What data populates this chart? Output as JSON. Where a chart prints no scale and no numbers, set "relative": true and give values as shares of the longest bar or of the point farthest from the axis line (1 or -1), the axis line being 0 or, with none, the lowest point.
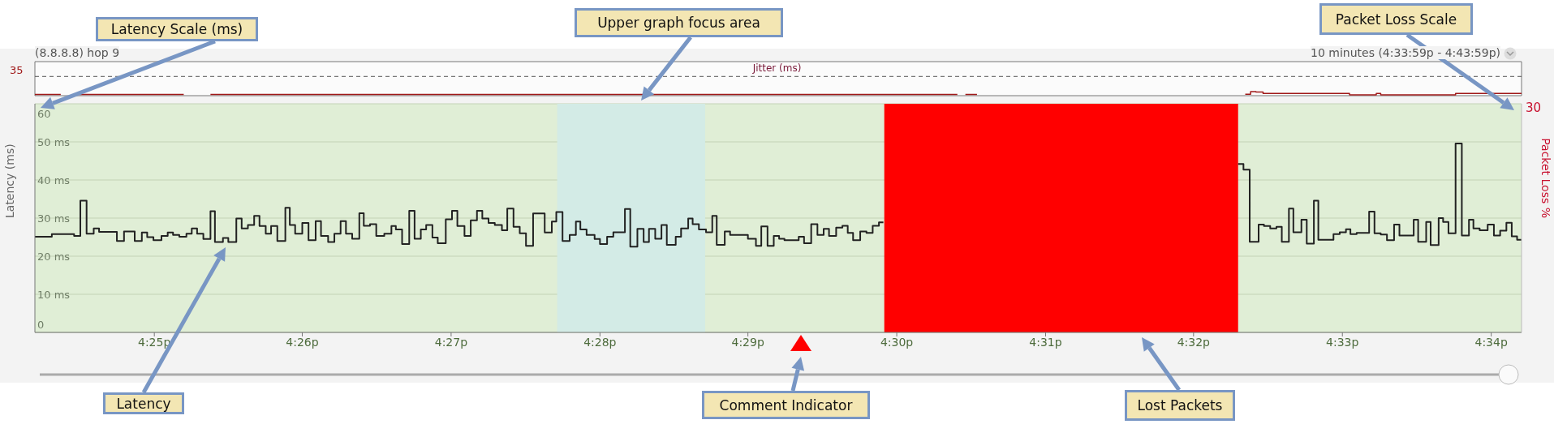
{
  "chart_data": [
    {
      "type": "step",
      "title": "Jitter (ms)",
      "color": "#a01818",
      "annotations": [
        "(8.8.8.8) hop 9",
        "10 minutes (4:33:59p - 4:43:59p)",
        "35"
      ],
      "x": [
        16.4033,
        16.4062,
        16.4063,
        16.4083,
        16.42,
        16.4201,
        16.423,
        16.5068,
        16.5069,
        16.5077,
        16.509,
        16.5091,
        16.5391,
        16.5397,
        16.5403,
        16.5411,
        16.5508,
        16.5538,
        16.5543,
        16.5627,
        16.5701
      ],
      "values": [
        0.32,
        0.32,
        null,
        0.32,
        0.32,
        null,
        0.32,
        0.32,
        null,
        0.32,
        0.32,
        null,
        0.36,
        1,
        0.91,
        0.54,
        0.18,
        0.54,
        0.18,
        0.54,
        0.54
      ],
      "relative": true,
      "xlim": [
        16.4033,
        16.5701
      ],
      "ref_lines": [
        {
          "axis": "y",
          "value": 4.73,
          "line_style": "dashed",
          "color": "#555555"
        }
      ]
    },
    {
      "type": "step",
      "ylabel": "Latency (ms)",
      "y2label": "Packet Loss %",
      "series": [
        {
          "color": "#222222",
          "x": [
            16.4033,
            16.4052,
            16.4077,
            16.4084,
            16.4091,
            16.4099,
            16.4105,
            16.4125,
            16.4133,
            16.4145,
            16.4153,
            16.4159,
            16.4166,
            16.4175,
            16.4182,
            16.4188,
            16.4195,
            16.4203,
            16.4209,
            16.4215,
            16.4222,
            16.423,
            16.4235,
            16.4244,
            16.425,
            16.4259,
            16.4265,
            16.4272,
            16.4279,
            16.4285,
            16.4292,
            16.4298,
            16.4305,
            16.4314,
            16.4319,
            16.4325,
            16.4333,
            16.434,
            16.4348,
            16.4354,
            16.4362,
            16.4369,
            16.4376,
            16.4382,
            16.4389,
            16.4397,
            16.4402,
            16.4409,
            16.4416,
            16.4425,
            16.4433,
            16.4438,
            16.4445,
            16.4453,
            16.4459,
            16.4466,
            16.4472,
            16.4479,
            16.4485,
            16.4494,
            16.4501,
            16.4507,
            16.4515,
            16.4522,
            16.4529,
            16.4535,
            16.4542,
            16.4549,
            16.4557,
            16.4563,
            16.457,
            16.4577,
            16.4584,
            16.4592,
            16.4605,
            16.4613,
            16.4618,
            16.4625,
            16.4633,
            16.464,
            16.4645,
            16.4652,
            16.4661,
            16.4667,
            16.4675,
            16.4682,
            16.4695,
            16.4701,
            16.4709,
            16.4716,
            16.4722,
            16.4729,
            16.4736,
            16.4742,
            16.4752,
            16.4758,
            16.4766,
            16.4771,
            16.4778,
            16.4786,
            16.4793,
            16.4798,
            16.4807,
            16.4813,
            16.4833,
            16.4842,
            16.4848,
            16.4855,
            16.4862,
            16.4868,
            16.4874,
            16.489,
            16.4896,
            16.4904,
            16.4911,
            16.4918,
            16.4924,
            16.4932,
            16.4939,
            16.4945,
            16.4951,
            16.4959,
            16.4966,
            16.4973,
            16.498,
            16.4985,
            16.4986,
            16.5383,
            16.5389,
            16.5396,
            16.5406,
            16.5412,
            16.5419,
            16.5426,
            16.5432,
            16.544,
            16.5445,
            16.5454,
            16.546,
            16.5468,
            16.5473,
            16.549,
            16.5497,
            16.5504,
            16.5509,
            16.5516,
            16.553,
            16.5536,
            16.5543,
            16.555,
            16.5558,
            16.5564,
            16.558,
            16.5585,
            16.5594,
            16.5599,
            16.5608,
            16.5613,
            16.5619,
            16.5627,
            16.5634,
            16.5642,
            16.5647,
            16.5654,
            16.5663,
            16.567,
            16.5677,
            16.5684,
            16.569,
            16.5696,
            16.5701
          ],
          "values": [
            25.1,
            25.8,
            25.3,
            34.6,
            25.9,
            27.3,
            26.4,
            24.0,
            26.5,
            24.0,
            26.2,
            25.0,
            24.2,
            25.3,
            26.2,
            25.6,
            25.1,
            25.9,
            27.3,
            25.9,
            24.5,
            31.8,
            23.7,
            24.8,
            23.7,
            29.9,
            27.3,
            28.2,
            30.6,
            27.9,
            25.9,
            27.9,
            24.0,
            32.7,
            28.2,
            25.9,
            28.7,
            24.2,
            29.2,
            25.3,
            23.7,
            25.9,
            29.2,
            25.9,
            24.6,
            31.3,
            28.0,
            28.4,
            25.3,
            25.9,
            27.9,
            27.0,
            23.2,
            31.9,
            24.6,
            27.0,
            28.2,
            24.9,
            23.4,
            29.7,
            31.9,
            27.9,
            25.3,
            29.4,
            31.9,
            29.9,
            28.7,
            28.2,
            26.8,
            32.5,
            27.7,
            26.0,
            22.7,
            31.2,
            26.2,
            29.1,
            31.6,
            24.0,
            25.6,
            29.1,
            27.0,
            25.6,
            24.5,
            23.2,
            25.1,
            26.3,
            32.4,
            22.5,
            27.2,
            23.7,
            27.2,
            24.6,
            28.2,
            23.0,
            25.1,
            27.3,
            29.9,
            28.4,
            27.0,
            26.3,
            30.6,
            23.0,
            26.5,
            25.6,
            24.6,
            22.7,
            27.8,
            22.7,
            25.3,
            24.6,
            24.2,
            25.1,
            23.4,
            28.4,
            25.6,
            27.2,
            25.3,
            27.5,
            28.0,
            26.1,
            24.2,
            26.5,
            26.1,
            28.0,
            28.9,
            28.9,
            null,
            44.2,
            42.7,
            23.8,
            28.3,
            27.9,
            27.3,
            27.7,
            23.8,
            32.5,
            26.3,
            29.6,
            23.3,
            34.6,
            24.3,
            25.8,
            26.3,
            27.1,
            25.8,
            26.1,
            31.7,
            26.0,
            25.7,
            24.2,
            28.3,
            25.4,
            29.6,
            23.8,
            29.0,
            22.9,
            30.0,
            29.0,
            26.0,
            49.6,
            25.4,
            29.6,
            27.3,
            26.8,
            28.3,
            25.4,
            26.7,
            28.8,
            25.2,
            24.3,
            24.3
          ]
        }
      ],
      "xlim": [
        16.4033,
        16.5701
      ],
      "xticks": [
        {
          "value": 16.4167,
          "label": "4:25p"
        },
        {
          "value": 16.4333,
          "label": "4:26p"
        },
        {
          "value": 16.45,
          "label": "4:27p"
        },
        {
          "value": 16.4667,
          "label": "4:28p"
        },
        {
          "value": 16.4833,
          "label": "4:29p"
        },
        {
          "value": 16.5,
          "label": "4:30p"
        },
        {
          "value": 16.5167,
          "label": "4:31p"
        },
        {
          "value": 16.5333,
          "label": "4:32p"
        },
        {
          "value": 16.55,
          "label": "4:33p"
        },
        {
          "value": 16.5667,
          "label": "4:34p"
        }
      ],
      "ylim": [
        0,
        60
      ],
      "yticks": [
        0,
        {
          "value": 10,
          "label": "10 ms"
        },
        {
          "value": 20,
          "label": "20 ms"
        },
        {
          "value": 30,
          "label": "30 ms"
        },
        {
          "value": 40,
          "label": "40 ms"
        },
        {
          "value": 50,
          "label": "50 ms"
        },
        60
      ],
      "grid": "y",
      "bands": [
        {
          "axis": "x",
          "from": 16.4986,
          "to": 16.5383,
          "color": "#ff0000"
        },
        {
          "axis": "x",
          "from": 16.4619,
          "to": 16.4785,
          "color": "#d3ebe6"
        }
      ],
      "annotations": [
        "Latency Scale (ms)",
        "Upper graph focus area",
        "Packet Loss Scale",
        "Latency",
        "Comment Indicator",
        "Lost Packets",
        "30"
      ]
    }
  ]
}
